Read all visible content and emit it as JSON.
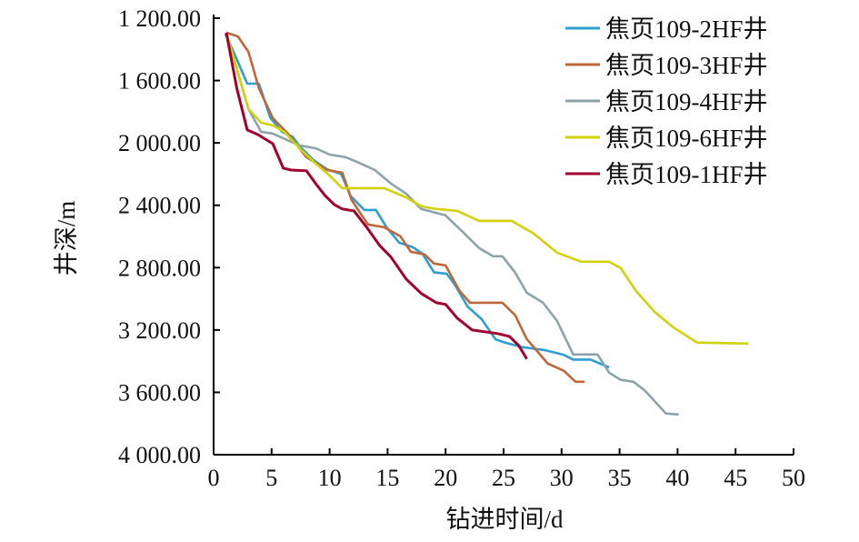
{
  "chart_data": {
    "type": "line",
    "title": "",
    "xlabel": "钻进时间/d",
    "ylabel": "井深/m",
    "xlim": [
      0,
      50
    ],
    "ylim": [
      1200,
      4000
    ],
    "y_inverted": true,
    "grid": false,
    "legend_position": "top-right",
    "x_ticks": [
      "0",
      "5",
      "10",
      "15",
      "20",
      "25",
      "30",
      "35",
      "40",
      "45",
      "50"
    ],
    "y_ticks": [
      "1 200.00",
      "1 600.00",
      "2 000.00",
      "2 400.00",
      "2 800.00",
      "3 200.00",
      "3 600.00",
      "4 000.00"
    ],
    "series": [
      {
        "name": "焦页109-2HF井",
        "color": "#2f9fd0",
        "points": [
          [
            1,
            1300
          ],
          [
            1.8,
            1430
          ],
          [
            2.9,
            1620
          ],
          [
            3.9,
            1620
          ],
          [
            4.9,
            1840
          ],
          [
            5.9,
            1930
          ],
          [
            6.8,
            1960
          ],
          [
            7.4,
            2020
          ],
          [
            8.6,
            2110
          ],
          [
            9.8,
            2170
          ],
          [
            11,
            2200
          ],
          [
            11.8,
            2340
          ],
          [
            13,
            2430
          ],
          [
            14,
            2430
          ],
          [
            14.9,
            2540
          ],
          [
            16,
            2640
          ],
          [
            17.2,
            2670
          ],
          [
            18,
            2710
          ],
          [
            19,
            2830
          ],
          [
            20.1,
            2840
          ],
          [
            20.8,
            2910
          ],
          [
            21.9,
            3050
          ],
          [
            23.1,
            3130
          ],
          [
            24.3,
            3260
          ],
          [
            25.1,
            3280
          ],
          [
            26.6,
            3310
          ],
          [
            28.6,
            3330
          ],
          [
            30.2,
            3360
          ],
          [
            31,
            3390
          ],
          [
            32.5,
            3390
          ],
          [
            34.1,
            3440
          ]
        ]
      },
      {
        "name": "焦页109-3HF井",
        "color": "#c0673a",
        "points": [
          [
            1.1,
            1293
          ],
          [
            2.1,
            1317
          ],
          [
            3.0,
            1416
          ],
          [
            3.9,
            1649
          ],
          [
            5.1,
            1841
          ],
          [
            6.4,
            1940
          ],
          [
            8.0,
            2092
          ],
          [
            9.8,
            2174
          ],
          [
            11.1,
            2191
          ],
          [
            11.9,
            2366
          ],
          [
            13.3,
            2523
          ],
          [
            14.7,
            2541
          ],
          [
            16.1,
            2599
          ],
          [
            17.0,
            2698
          ],
          [
            18.2,
            2716
          ],
          [
            19.0,
            2774
          ],
          [
            20.0,
            2786
          ],
          [
            21.2,
            2949
          ],
          [
            22.1,
            3025
          ],
          [
            24.9,
            3025
          ],
          [
            26.0,
            3106
          ],
          [
            27.0,
            3258
          ],
          [
            28.8,
            3415
          ],
          [
            30.2,
            3462
          ],
          [
            31.2,
            3532
          ],
          [
            32.0,
            3532
          ]
        ]
      },
      {
        "name": "焦页109-4HF井",
        "color": "#8ca4a9",
        "points": [
          [
            1.1,
            1293
          ],
          [
            3.0,
            1783
          ],
          [
            4.1,
            1929
          ],
          [
            5.1,
            1940
          ],
          [
            7.4,
            2016
          ],
          [
            8.8,
            2034
          ],
          [
            10.0,
            2075
          ],
          [
            11.4,
            2092
          ],
          [
            12.7,
            2133
          ],
          [
            13.9,
            2174
          ],
          [
            15.3,
            2261
          ],
          [
            16.6,
            2325
          ],
          [
            17.9,
            2424
          ],
          [
            20.0,
            2465
          ],
          [
            21.3,
            2558
          ],
          [
            22.9,
            2675
          ],
          [
            24.1,
            2727
          ],
          [
            24.9,
            2727
          ],
          [
            26.0,
            2832
          ],
          [
            27.0,
            2961
          ],
          [
            28.4,
            3025
          ],
          [
            29.6,
            3141
          ],
          [
            31.0,
            3357
          ],
          [
            33.1,
            3357
          ],
          [
            34.1,
            3474
          ],
          [
            35.1,
            3520
          ],
          [
            36.2,
            3532
          ],
          [
            37.2,
            3590
          ],
          [
            39.0,
            3736
          ],
          [
            40.1,
            3742
          ]
        ]
      },
      {
        "name": "焦页109-6HF井",
        "color": "#d2d20a",
        "points": [
          [
            1.1,
            1293
          ],
          [
            3.0,
            1783
          ],
          [
            4.1,
            1870
          ],
          [
            5.1,
            1888
          ],
          [
            6.1,
            1929
          ],
          [
            7.4,
            2034
          ],
          [
            8.8,
            2133
          ],
          [
            10.0,
            2209
          ],
          [
            11.1,
            2290
          ],
          [
            14.7,
            2290
          ],
          [
            16.6,
            2349
          ],
          [
            17.9,
            2407
          ],
          [
            19.2,
            2424
          ],
          [
            21.0,
            2436
          ],
          [
            22.9,
            2500
          ],
          [
            25.7,
            2500
          ],
          [
            27.6,
            2582
          ],
          [
            29.6,
            2704
          ],
          [
            31.7,
            2762
          ],
          [
            34.1,
            2762
          ],
          [
            35.1,
            2803
          ],
          [
            36.4,
            2949
          ],
          [
            38.0,
            3083
          ],
          [
            39.6,
            3182
          ],
          [
            41.7,
            3281
          ],
          [
            46.1,
            3287
          ]
        ]
      },
      {
        "name": "焦页109-1HF井",
        "color": "#a3002e",
        "points": [
          [
            1.1,
            1293
          ],
          [
            2.0,
            1649
          ],
          [
            2.9,
            1917
          ],
          [
            3.8,
            1946
          ],
          [
            5.1,
            2005
          ],
          [
            6.0,
            2162
          ],
          [
            6.7,
            2174
          ],
          [
            8.0,
            2179
          ],
          [
            8.8,
            2261
          ],
          [
            9.6,
            2337
          ],
          [
            10.4,
            2395
          ],
          [
            11.1,
            2424
          ],
          [
            12.1,
            2436
          ],
          [
            13.2,
            2541
          ],
          [
            14.3,
            2657
          ],
          [
            15.3,
            2733
          ],
          [
            16.6,
            2873
          ],
          [
            17.9,
            2966
          ],
          [
            19.2,
            3025
          ],
          [
            20.0,
            3036
          ],
          [
            21.0,
            3124
          ],
          [
            22.3,
            3200
          ],
          [
            24.5,
            3223
          ],
          [
            25.5,
            3241
          ],
          [
            26.3,
            3299
          ],
          [
            27.0,
            3386
          ]
        ]
      }
    ]
  }
}
